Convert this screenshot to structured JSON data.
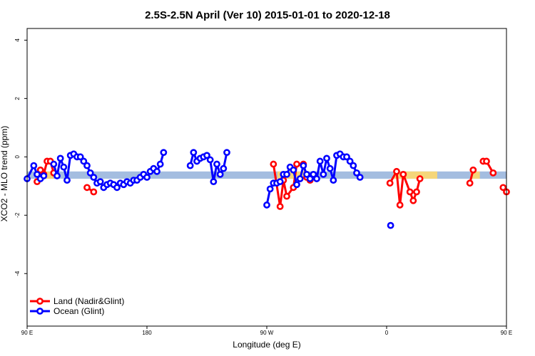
{
  "chart_data": {
    "type": "line",
    "title": "2.5S-2.5N April (Ver 10)   2015-01-01 to 2020-12-18",
    "xlabel": "Longitude (deg E)",
    "ylabel": "XCO2 - MLO trend (ppm)",
    "xlim": [
      90,
      450
    ],
    "ylim": [
      -5.8,
      4.4
    ],
    "x_ticks": [
      {
        "value": 90,
        "label": "90 E"
      },
      {
        "value": 180,
        "label": "180"
      },
      {
        "value": 270,
        "label": "90 W"
      },
      {
        "value": 360,
        "label": "0"
      },
      {
        "value": 450,
        "label": "90 E"
      }
    ],
    "y_ticks": [
      -4,
      -2,
      0,
      2,
      4
    ],
    "grid": false,
    "legend_position": "bottom-left",
    "bands": [
      {
        "color": "#a4bde0",
        "x_from": 90,
        "x_to": 450,
        "y_from": -0.75,
        "y_to": -0.5
      },
      {
        "color": "#f5d67a",
        "x_from": 102,
        "x_to": 110,
        "y_from": -0.75,
        "y_to": -0.5
      },
      {
        "color": "#f5d67a",
        "x_from": 278,
        "x_to": 302,
        "y_from": -0.75,
        "y_to": -0.5
      },
      {
        "color": "#f5d67a",
        "x_from": 365,
        "x_to": 398,
        "y_from": -0.75,
        "y_to": -0.5
      },
      {
        "color": "#f5d67a",
        "x_from": 423,
        "x_to": 430,
        "y_from": -0.75,
        "y_to": -0.5
      }
    ],
    "series": [
      {
        "name": "Land (Nadir&Glint)",
        "color": "#ff0000",
        "points": [
          [
            97.5,
            -0.85
          ],
          [
            100,
            -0.45
          ],
          [
            102.5,
            -0.6
          ],
          [
            105,
            -0.15
          ],
          [
            107.5,
            -0.15
          ],
          [
            110,
            -0.55
          ],
          [
            135,
            -1.05
          ],
          [
            140,
            -1.2
          ],
          [
            275,
            -0.25
          ],
          [
            280,
            -1.7
          ],
          [
            282.5,
            -0.8
          ],
          [
            285,
            -1.35
          ],
          [
            290,
            -1.05
          ],
          [
            292.5,
            -0.25
          ],
          [
            297.5,
            -0.25
          ],
          [
            300,
            -0.7
          ],
          [
            302.5,
            -0.8
          ],
          [
            362.5,
            -0.9
          ],
          [
            367.5,
            -0.5
          ],
          [
            370,
            -1.65
          ],
          [
            372.5,
            -0.6
          ],
          [
            377.5,
            -1.2
          ],
          [
            380,
            -1.5
          ],
          [
            382.5,
            -1.2
          ],
          [
            385,
            -0.75
          ],
          [
            422.5,
            -0.9
          ],
          [
            425,
            -0.45
          ],
          [
            432.5,
            -0.15
          ],
          [
            435,
            -0.15
          ],
          [
            440,
            -0.55
          ],
          [
            447.5,
            -1.05
          ],
          [
            450,
            -1.2
          ]
        ]
      },
      {
        "name": "Ocean (Glint)",
        "color": "#0000ff",
        "points": [
          [
            90,
            -0.75
          ],
          [
            95,
            -0.3
          ],
          [
            97.5,
            -0.6
          ],
          [
            100,
            -0.75
          ],
          [
            102.5,
            -0.65
          ],
          [
            110,
            -0.25
          ],
          [
            112.5,
            -0.65
          ],
          [
            115,
            -0.05
          ],
          [
            117.5,
            -0.35
          ],
          [
            120,
            -0.8
          ],
          [
            122.5,
            0.05
          ],
          [
            125,
            0.1
          ],
          [
            127.5,
            0.0
          ],
          [
            130,
            0.0
          ],
          [
            132.5,
            -0.15
          ],
          [
            135,
            -0.3
          ],
          [
            137.5,
            -0.55
          ],
          [
            140,
            -0.7
          ],
          [
            142.5,
            -0.9
          ],
          [
            145,
            -0.85
          ],
          [
            147.5,
            -1.05
          ],
          [
            150,
            -0.95
          ],
          [
            152.5,
            -0.9
          ],
          [
            155,
            -0.95
          ],
          [
            157.5,
            -1.05
          ],
          [
            160,
            -0.9
          ],
          [
            162.5,
            -0.95
          ],
          [
            165,
            -0.85
          ],
          [
            167.5,
            -0.9
          ],
          [
            170,
            -0.8
          ],
          [
            172.5,
            -0.8
          ],
          [
            175,
            -0.7
          ],
          [
            177.5,
            -0.6
          ],
          [
            180,
            -0.7
          ],
          [
            182.5,
            -0.5
          ],
          [
            185,
            -0.4
          ],
          [
            187.5,
            -0.5
          ],
          [
            190,
            -0.25
          ],
          [
            192.5,
            0.15
          ],
          [
            212.5,
            -0.3
          ],
          [
            215,
            0.15
          ],
          [
            217.5,
            -0.15
          ],
          [
            220,
            -0.05
          ],
          [
            222.5,
            0.0
          ],
          [
            225,
            0.05
          ],
          [
            227.5,
            -0.1
          ],
          [
            230,
            -0.85
          ],
          [
            232.5,
            -0.25
          ],
          [
            235,
            -0.6
          ],
          [
            237.5,
            -0.4
          ],
          [
            240,
            0.15
          ],
          [
            270,
            -1.65
          ],
          [
            272.5,
            -1.1
          ],
          [
            275,
            -0.9
          ],
          [
            277.5,
            -0.9
          ],
          [
            280,
            -0.85
          ],
          [
            282.5,
            -0.6
          ],
          [
            285,
            -0.6
          ],
          [
            287.5,
            -0.35
          ],
          [
            290,
            -0.45
          ],
          [
            292.5,
            -0.95
          ],
          [
            295,
            -0.75
          ],
          [
            297.5,
            -0.3
          ],
          [
            300,
            -0.6
          ],
          [
            302.5,
            -0.75
          ],
          [
            305,
            -0.6
          ],
          [
            307.5,
            -0.75
          ],
          [
            310,
            -0.15
          ],
          [
            312.5,
            -0.6
          ],
          [
            315,
            -0.05
          ],
          [
            317.5,
            -0.4
          ],
          [
            320,
            -0.8
          ],
          [
            322.5,
            0.05
          ],
          [
            325,
            0.1
          ],
          [
            327.5,
            0.0
          ],
          [
            330,
            0.0
          ],
          [
            332.5,
            -0.15
          ],
          [
            335,
            -0.3
          ],
          [
            337.5,
            -0.55
          ],
          [
            340,
            -0.7
          ]
        ]
      },
      {
        "name": "",
        "color": "#0000ff",
        "points": [
          [
            363,
            -2.35
          ]
        ]
      }
    ]
  }
}
